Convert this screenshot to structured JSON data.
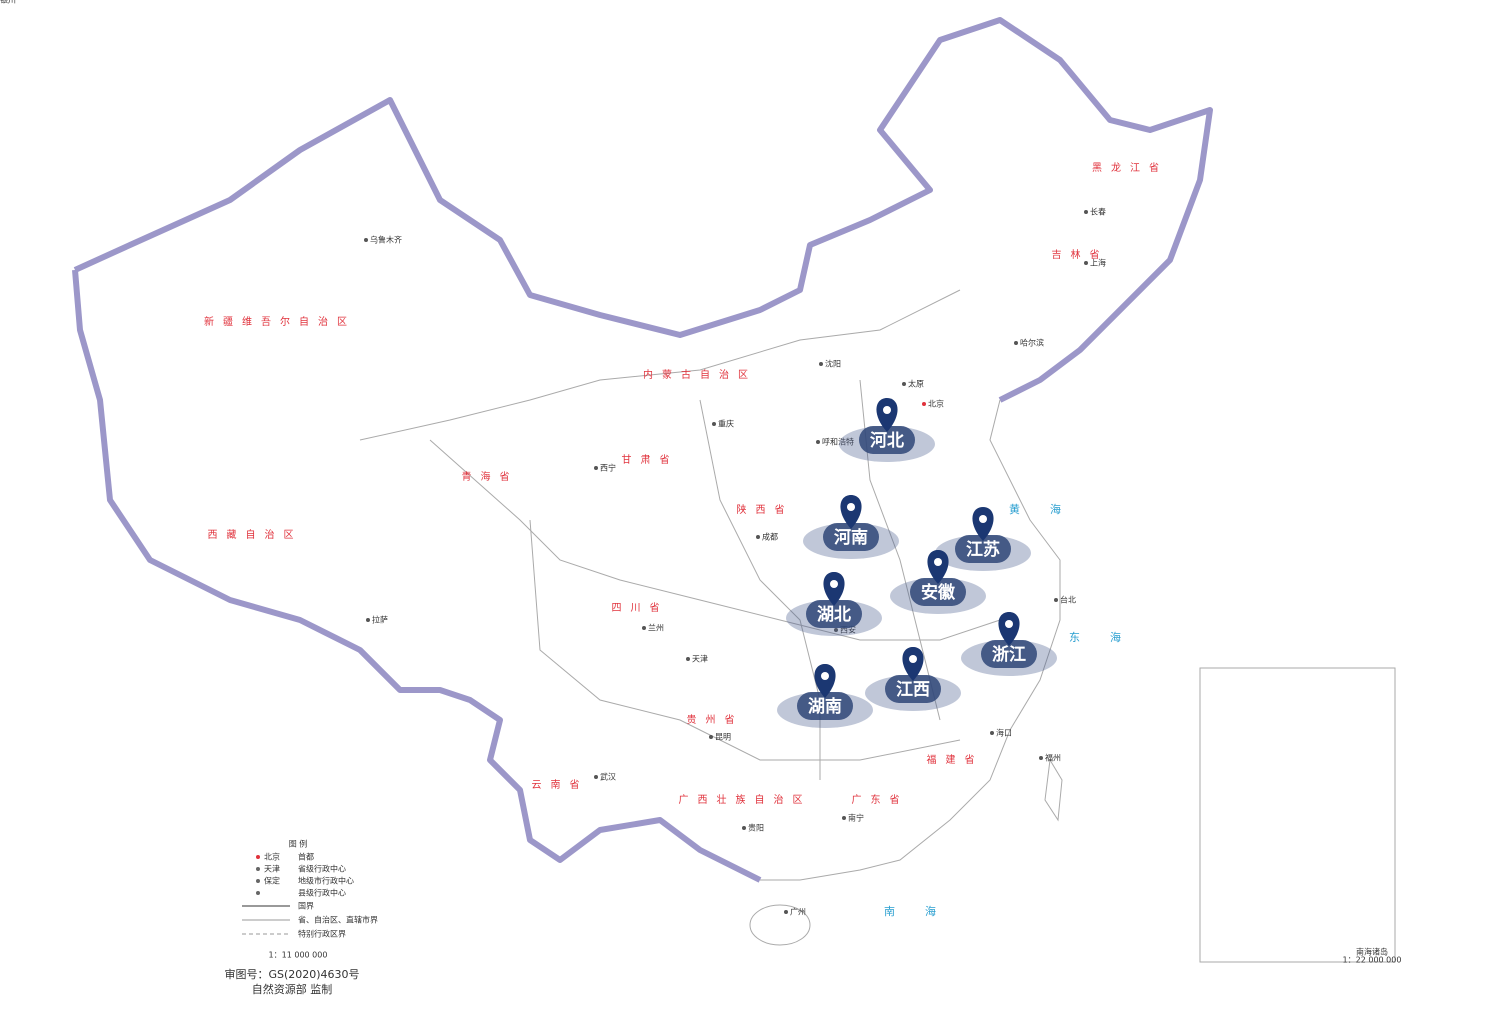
{
  "markers": [
    {
      "label": "河北"
    },
    {
      "label": "河南"
    },
    {
      "label": "江苏"
    },
    {
      "label": "安徽"
    },
    {
      "label": "湖北"
    },
    {
      "label": "浙江"
    },
    {
      "label": "江西"
    },
    {
      "label": "湖南"
    }
  ],
  "regions": [
    {
      "label": "新疆维吾尔自治区"
    },
    {
      "label": "西藏自治区"
    },
    {
      "label": "青海省"
    },
    {
      "label": "四川省"
    },
    {
      "label": "甘肃省"
    },
    {
      "label": "内蒙古自治区"
    },
    {
      "label": "云南省"
    },
    {
      "label": "广西壮族自治区"
    },
    {
      "label": "广东省"
    },
    {
      "label": "黑龙江省"
    },
    {
      "label": "吉林省"
    },
    {
      "label": "贵州省"
    },
    {
      "label": "福建省"
    },
    {
      "label": "陕西省"
    }
  ],
  "cities": [
    {
      "label": "乌鲁木齐"
    },
    {
      "label": "拉萨"
    },
    {
      "label": "西宁"
    },
    {
      "label": "兰州"
    },
    {
      "label": "成都"
    },
    {
      "label": "西安"
    },
    {
      "label": "武汉"
    },
    {
      "label": "昆明"
    },
    {
      "label": "贵阳"
    },
    {
      "label": "南宁"
    },
    {
      "label": "广州"
    },
    {
      "label": "海口"
    },
    {
      "label": "福州"
    },
    {
      "label": "台北"
    },
    {
      "label": "上海"
    },
    {
      "label": "长春"
    },
    {
      "label": "哈尔滨"
    },
    {
      "label": "沈阳"
    },
    {
      "label": "呼和浩特"
    },
    {
      "label": "太原"
    },
    {
      "label": "北京"
    },
    {
      "label": "天津"
    },
    {
      "label": "重庆"
    },
    {
      "label": "银川"
    }
  ],
  "seas": [
    {
      "label": "黄海"
    },
    {
      "label": "东海"
    },
    {
      "label": "南海"
    }
  ],
  "legend": {
    "title": "图 例",
    "items": [
      {
        "name": "北京",
        "desc": "首都"
      },
      {
        "name": "天津",
        "desc": "省级行政中心"
      },
      {
        "name": "保定",
        "desc": "地级市行政中心"
      },
      {
        "name": "",
        "desc": "县级行政中心"
      }
    ],
    "lines": [
      {
        "desc": "国界"
      },
      {
        "desc": "省、自治区、直辖市界"
      },
      {
        "desc": "特别行政区界"
      }
    ],
    "scale": "1：11 000 000"
  },
  "approval": "审图号：GS(2020)4630号",
  "publisher": "自然资源部  监制",
  "inset": {
    "title": "南海诸岛",
    "scale": "1：22 000 000"
  }
}
